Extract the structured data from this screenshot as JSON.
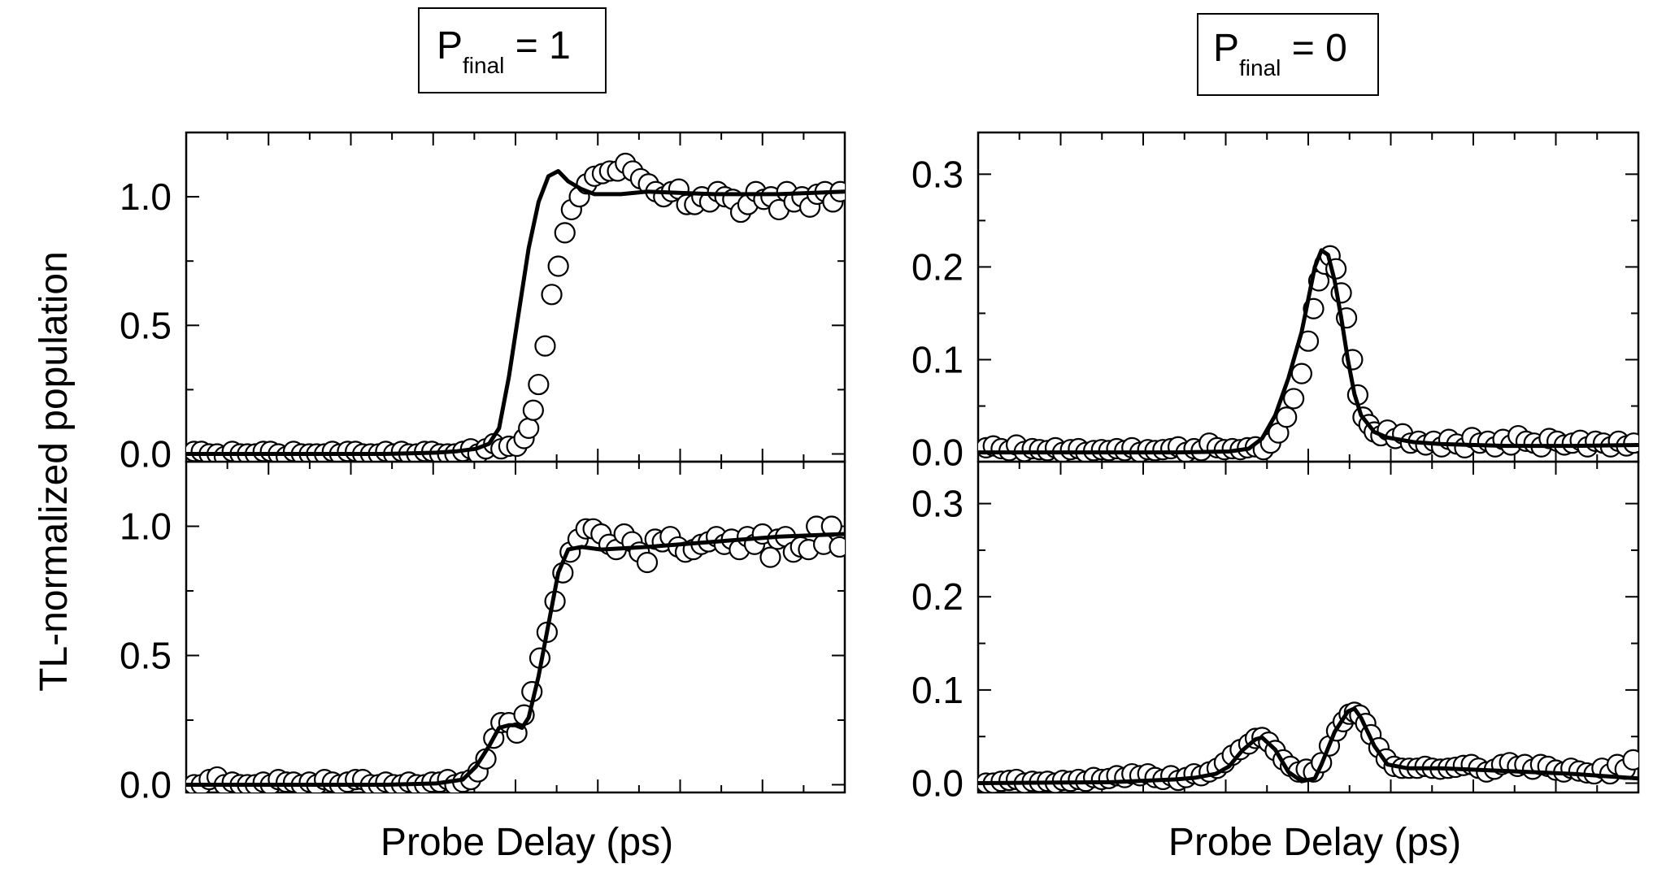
{
  "figure": {
    "ylabel": "TL-normalized population",
    "xlabel_left": "Probe Delay (ps)",
    "xlabel_right": "Probe Delay (ps)"
  },
  "titles": {
    "left": {
      "main": "P",
      "sub": "final",
      "rest": " = 1"
    },
    "right": {
      "main": "P",
      "sub": "final",
      "rest": " = 0"
    }
  },
  "chart_data": [
    {
      "type": "scatter",
      "panel": "top-left",
      "ylim": [
        -0.03,
        1.25
      ],
      "yticks": [
        0.0,
        0.5,
        1.0
      ],
      "ytick_labels": [
        "0.0",
        "0.5",
        "1.0"
      ],
      "xlim": [
        0,
        1
      ],
      "series": [
        {
          "x": [
            0.012,
            0.023,
            0.035,
            0.047,
            0.058,
            0.07,
            0.082,
            0.093,
            0.105,
            0.117,
            0.128,
            0.14,
            0.152,
            0.163,
            0.175,
            0.187,
            0.198,
            0.21,
            0.222,
            0.233,
            0.245,
            0.257,
            0.268,
            0.28,
            0.292,
            0.303,
            0.315,
            0.327,
            0.338,
            0.35,
            0.362,
            0.373,
            0.385,
            0.397,
            0.408,
            0.42,
            0.432,
            0.443,
            0.455,
            0.467,
            0.478,
            0.49,
            0.502,
            0.513,
            0.52,
            0.527,
            0.535,
            0.545,
            0.555,
            0.565,
            0.575,
            0.585,
            0.597,
            0.608,
            0.62,
            0.632,
            0.643,
            0.655,
            0.667,
            0.678,
            0.69,
            0.702,
            0.713,
            0.725,
            0.737,
            0.748,
            0.76,
            0.772,
            0.783,
            0.795,
            0.807,
            0.818,
            0.83,
            0.842,
            0.853,
            0.865,
            0.877,
            0.888,
            0.9,
            0.912,
            0.923,
            0.935,
            0.947,
            0.958,
            0.97,
            0.982,
            0.993
          ],
          "y": [
            0.01,
            0.01,
            0,
            0,
            -0.01,
            0.01,
            0,
            0,
            0,
            0.01,
            0.01,
            0,
            -0.01,
            0.01,
            0,
            0,
            0,
            0,
            0.01,
            0,
            0.01,
            0.01,
            0,
            0,
            0,
            0.01,
            0,
            0.01,
            0,
            0,
            0.01,
            0.01,
            0,
            0,
            0,
            0.01,
            0.02,
            0,
            0.02,
            0.04,
            0.02,
            0.03,
            0.03,
            0.06,
            0.1,
            0.17,
            0.27,
            0.42,
            0.62,
            0.73,
            0.86,
            0.95,
            1.0,
            1.05,
            1.08,
            1.09,
            1.1,
            1.1,
            1.13,
            1.1,
            1.07,
            1.05,
            1.02,
            1.0,
            1.02,
            1.03,
            0.97,
            0.97,
            1.0,
            0.98,
            1.02,
            1.0,
            0.99,
            0.94,
            0.97,
            1.02,
            0.99,
            1.0,
            0.95,
            1.02,
            0.98,
            1.0,
            0.96,
            1.01,
            1.02,
            0.98,
            1.02
          ]
        },
        {
          "x": [
            0,
            0.1,
            0.2,
            0.3,
            0.38,
            0.41,
            0.44,
            0.46,
            0.475,
            0.49,
            0.505,
            0.52,
            0.535,
            0.55,
            0.565,
            0.58,
            0.6,
            0.62,
            0.66,
            0.7,
            0.8,
            0.9,
            1.0
          ],
          "y": [
            0,
            0,
            0,
            0,
            0.005,
            0.01,
            0.02,
            0.04,
            0.1,
            0.3,
            0.55,
            0.8,
            0.98,
            1.08,
            1.1,
            1.06,
            1.03,
            1.01,
            1.01,
            1.02,
            1.01,
            1.01,
            1.02
          ]
        }
      ]
    },
    {
      "type": "scatter",
      "panel": "bottom-left",
      "ylim": [
        -0.03,
        1.25
      ],
      "yticks": [
        0.0,
        0.5,
        1.0
      ],
      "ytick_labels": [
        "0.0",
        "0.5",
        "1.0"
      ],
      "xlim": [
        0,
        1
      ],
      "series": [
        {
          "x": [
            0.012,
            0.023,
            0.035,
            0.047,
            0.058,
            0.07,
            0.082,
            0.093,
            0.105,
            0.117,
            0.128,
            0.14,
            0.152,
            0.163,
            0.175,
            0.187,
            0.198,
            0.21,
            0.222,
            0.233,
            0.245,
            0.257,
            0.268,
            0.28,
            0.292,
            0.303,
            0.315,
            0.327,
            0.338,
            0.35,
            0.362,
            0.373,
            0.385,
            0.397,
            0.408,
            0.42,
            0.432,
            0.443,
            0.455,
            0.467,
            0.478,
            0.49,
            0.502,
            0.513,
            0.525,
            0.537,
            0.548,
            0.56,
            0.572,
            0.583,
            0.595,
            0.607,
            0.618,
            0.63,
            0.642,
            0.653,
            0.665,
            0.677,
            0.688,
            0.7,
            0.712,
            0.723,
            0.735,
            0.747,
            0.758,
            0.77,
            0.782,
            0.793,
            0.805,
            0.817,
            0.828,
            0.84,
            0.852,
            0.863,
            0.875,
            0.887,
            0.898,
            0.91,
            0.922,
            0.933,
            0.945,
            0.957,
            0.968,
            0.98,
            0.992
          ],
          "y": [
            0.0,
            0.0,
            0.02,
            0.03,
            0.0,
            0.01,
            0.0,
            0.0,
            0.0,
            0.01,
            0.0,
            0.02,
            0.01,
            0.01,
            0.0,
            0.01,
            0.0,
            0.02,
            0.01,
            0.0,
            0.01,
            0.02,
            0.02,
            0.0,
            0.0,
            0.01,
            0.0,
            0.0,
            0.01,
            0.0,
            0.0,
            0.01,
            0.01,
            0.02,
            0.0,
            0.01,
            0.02,
            0.05,
            0.1,
            0.18,
            0.24,
            0.24,
            0.2,
            0.27,
            0.36,
            0.49,
            0.59,
            0.71,
            0.82,
            0.9,
            0.95,
            0.99,
            0.99,
            0.97,
            0.93,
            0.91,
            0.97,
            0.94,
            0.9,
            0.86,
            0.95,
            0.94,
            0.96,
            0.92,
            0.9,
            0.91,
            0.93,
            0.94,
            0.96,
            0.93,
            0.95,
            0.91,
            0.96,
            0.93,
            0.97,
            0.88,
            0.95,
            0.96,
            0.9,
            0.92,
            0.91,
            1.0,
            0.93,
            1.0,
            0.92
          ]
        },
        {
          "x": [
            0,
            0.1,
            0.2,
            0.3,
            0.38,
            0.42,
            0.44,
            0.46,
            0.475,
            0.49,
            0.5,
            0.51,
            0.52,
            0.535,
            0.55,
            0.565,
            0.58,
            0.6,
            0.63,
            0.7,
            0.8,
            0.9,
            1.0
          ],
          "y": [
            0,
            0,
            0,
            0,
            0.005,
            0.02,
            0.07,
            0.15,
            0.22,
            0.23,
            0.23,
            0.22,
            0.26,
            0.42,
            0.62,
            0.82,
            0.91,
            0.92,
            0.91,
            0.92,
            0.94,
            0.96,
            0.97
          ]
        }
      ]
    },
    {
      "type": "scatter",
      "panel": "top-right",
      "ylim": [
        -0.01,
        0.345
      ],
      "yticks": [
        0.0,
        0.1,
        0.2,
        0.3
      ],
      "ytick_labels": [
        "0.0",
        "0.1",
        "0.2",
        "0.3"
      ],
      "xlim": [
        0,
        1
      ],
      "series": [
        {
          "x": [
            0.012,
            0.023,
            0.035,
            0.047,
            0.058,
            0.07,
            0.082,
            0.093,
            0.105,
            0.117,
            0.128,
            0.14,
            0.152,
            0.163,
            0.175,
            0.187,
            0.198,
            0.21,
            0.222,
            0.233,
            0.245,
            0.257,
            0.268,
            0.28,
            0.292,
            0.303,
            0.315,
            0.327,
            0.338,
            0.35,
            0.362,
            0.373,
            0.385,
            0.397,
            0.408,
            0.42,
            0.432,
            0.443,
            0.455,
            0.467,
            0.478,
            0.49,
            0.5,
            0.508,
            0.516,
            0.525,
            0.533,
            0.542,
            0.55,
            0.558,
            0.567,
            0.575,
            0.583,
            0.592,
            0.6,
            0.61,
            0.62,
            0.632,
            0.643,
            0.655,
            0.667,
            0.678,
            0.69,
            0.702,
            0.713,
            0.725,
            0.737,
            0.748,
            0.76,
            0.772,
            0.783,
            0.795,
            0.807,
            0.818,
            0.83,
            0.842,
            0.853,
            0.865,
            0.877,
            0.888,
            0.9,
            0.912,
            0.923,
            0.935,
            0.947,
            0.958,
            0.97,
            0.982,
            0.993
          ],
          "y": [
            0.005,
            0.007,
            0.004,
            0.002,
            0.008,
            0.001,
            0.004,
            0.003,
            0.002,
            0.005,
            0.0,
            0.003,
            0.004,
            0.0,
            0.002,
            0.003,
            0.002,
            0.004,
            0.002,
            0.005,
            0.0,
            0.003,
            0.002,
            0.003,
            0.004,
            0.006,
            0.0,
            0.004,
            0.002,
            0.01,
            0.005,
            0.003,
            0.004,
            0.003,
            0.005,
            0.006,
            0.003,
            0.01,
            0.021,
            0.038,
            0.058,
            0.085,
            0.12,
            0.155,
            0.185,
            0.203,
            0.212,
            0.198,
            0.172,
            0.145,
            0.1,
            0.062,
            0.038,
            0.03,
            0.022,
            0.018,
            0.024,
            0.015,
            0.02,
            0.01,
            0.012,
            0.008,
            0.012,
            0.006,
            0.014,
            0.009,
            0.005,
            0.016,
            0.01,
            0.012,
            0.006,
            0.014,
            0.008,
            0.018,
            0.012,
            0.01,
            0.006,
            0.015,
            0.012,
            0.008,
            0.01,
            0.013,
            0.006,
            0.012,
            0.01,
            0.006,
            0.012,
            0.007,
            0.01
          ]
        },
        {
          "x": [
            0,
            0.1,
            0.2,
            0.3,
            0.38,
            0.41,
            0.43,
            0.45,
            0.47,
            0.49,
            0.5,
            0.51,
            0.52,
            0.53,
            0.54,
            0.55,
            0.56,
            0.57,
            0.58,
            0.6,
            0.62,
            0.66,
            0.7,
            0.8,
            0.9,
            1.0
          ],
          "y": [
            0,
            0,
            0,
            0,
            0.001,
            0.004,
            0.015,
            0.04,
            0.08,
            0.13,
            0.165,
            0.2,
            0.218,
            0.213,
            0.185,
            0.145,
            0.1,
            0.063,
            0.04,
            0.022,
            0.016,
            0.011,
            0.009,
            0.007,
            0.007,
            0.008
          ]
        }
      ]
    },
    {
      "type": "scatter",
      "panel": "bottom-right",
      "ylim": [
        -0.01,
        0.345
      ],
      "yticks": [
        0.0,
        0.1,
        0.2,
        0.3
      ],
      "ytick_labels": [
        "0.0",
        "0.1",
        "0.2",
        "0.3"
      ],
      "xlim": [
        0,
        1
      ],
      "series": [
        {
          "x": [
            0.012,
            0.023,
            0.035,
            0.047,
            0.058,
            0.07,
            0.082,
            0.093,
            0.105,
            0.117,
            0.128,
            0.14,
            0.152,
            0.163,
            0.175,
            0.187,
            0.198,
            0.21,
            0.222,
            0.233,
            0.245,
            0.257,
            0.268,
            0.28,
            0.292,
            0.303,
            0.315,
            0.327,
            0.338,
            0.35,
            0.362,
            0.373,
            0.385,
            0.397,
            0.41,
            0.42,
            0.43,
            0.44,
            0.45,
            0.462,
            0.473,
            0.485,
            0.497,
            0.508,
            0.52,
            0.532,
            0.543,
            0.553,
            0.562,
            0.57,
            0.578,
            0.587,
            0.595,
            0.607,
            0.618,
            0.63,
            0.642,
            0.653,
            0.665,
            0.677,
            0.688,
            0.7,
            0.712,
            0.723,
            0.735,
            0.747,
            0.758,
            0.77,
            0.782,
            0.793,
            0.805,
            0.817,
            0.828,
            0.84,
            0.852,
            0.863,
            0.875,
            0.887,
            0.898,
            0.91,
            0.922,
            0.933,
            0.945,
            0.957,
            0.968,
            0.98,
            0.992
          ],
          "y": [
            0.0,
            0.0,
            0.002,
            0.003,
            0.004,
            0.0,
            0.002,
            0.001,
            0.002,
            0.0,
            0.003,
            0.002,
            0.004,
            0.002,
            0.006,
            0.004,
            0.005,
            0.008,
            0.006,
            0.01,
            0.008,
            0.01,
            0.006,
            0.004,
            0.008,
            0.003,
            0.006,
            0.01,
            0.008,
            0.012,
            0.016,
            0.022,
            0.03,
            0.036,
            0.042,
            0.048,
            0.049,
            0.044,
            0.035,
            0.025,
            0.018,
            0.012,
            0.015,
            0.012,
            0.022,
            0.04,
            0.056,
            0.066,
            0.074,
            0.076,
            0.073,
            0.064,
            0.052,
            0.038,
            0.026,
            0.018,
            0.016,
            0.016,
            0.016,
            0.018,
            0.016,
            0.015,
            0.016,
            0.017,
            0.019,
            0.02,
            0.016,
            0.012,
            0.015,
            0.02,
            0.022,
            0.018,
            0.02,
            0.015,
            0.02,
            0.018,
            0.014,
            0.012,
            0.016,
            0.013,
            0.011,
            0.01,
            0.016,
            0.01,
            0.02,
            0.015,
            0.025
          ]
        },
        {
          "x": [
            0,
            0.2,
            0.3,
            0.33,
            0.36,
            0.38,
            0.4,
            0.42,
            0.43,
            0.45,
            0.47,
            0.49,
            0.51,
            0.52,
            0.54,
            0.56,
            0.57,
            0.58,
            0.6,
            0.62,
            0.65,
            0.7,
            0.8,
            0.9,
            1.0
          ],
          "y": [
            0,
            0.001,
            0.004,
            0.006,
            0.01,
            0.018,
            0.035,
            0.047,
            0.049,
            0.036,
            0.012,
            0.002,
            0.005,
            0.02,
            0.055,
            0.077,
            0.08,
            0.07,
            0.04,
            0.02,
            0.016,
            0.016,
            0.013,
            0.01,
            0.005
          ]
        }
      ]
    }
  ]
}
